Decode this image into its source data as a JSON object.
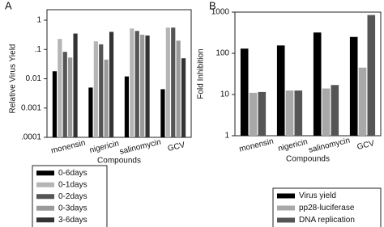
{
  "chart_data": [
    {
      "type": "bar",
      "title": "A",
      "y_label": "Relative Virus Yield",
      "x_label": "Compounds",
      "log_scale": true,
      "categories": [
        "monensin",
        "nigericin",
        "salinomycin",
        "GCV"
      ],
      "series": [
        {
          "name": "0-6days",
          "color": "#000000",
          "values": [
            0.018,
            0.005,
            0.012,
            0.0044
          ]
        },
        {
          "name": "0-1days",
          "color": "#b5b5b5",
          "values": [
            0.23,
            0.19,
            0.52,
            0.56
          ]
        },
        {
          "name": "0-2days",
          "color": "#555555",
          "values": [
            0.083,
            0.15,
            0.43,
            0.56
          ]
        },
        {
          "name": "0-3days",
          "color": "#9a9a9a",
          "values": [
            0.053,
            0.045,
            0.32,
            0.2
          ]
        },
        {
          "name": "3-6days",
          "color": "#333333",
          "values": [
            0.35,
            0.4,
            0.3,
            0.05
          ]
        }
      ],
      "ylim": [
        0.0001,
        1
      ],
      "yticks": [
        {
          "value": 0.0001,
          "label": ".0001"
        },
        {
          "value": 0.001,
          "label": "0.001"
        },
        {
          "value": 0.01,
          "label": "0.01"
        },
        {
          "value": 0.1,
          "label": ".1"
        },
        1
      ]
    },
    {
      "type": "bar",
      "title": "B",
      "y_label": "Fold Inhibition",
      "x_label": "Compounds",
      "log_scale": true,
      "categories": [
        "monensin",
        "nigericin",
        "salinomycin",
        "GCV"
      ],
      "series": [
        {
          "name": "Virus yield",
          "color": "#000000",
          "values": [
            130,
            155,
            320,
            250
          ]
        },
        {
          "name": "pp28-luciferase",
          "color": "#a8a8a8",
          "values": [
            11,
            12.5,
            14,
            45
          ]
        },
        {
          "name": "DNA replication",
          "color": "#555555",
          "values": [
            11.5,
            12.5,
            17,
            850
          ]
        }
      ],
      "ylim": [
        1,
        1000
      ],
      "yticks": [
        1,
        10,
        100,
        1000
      ]
    }
  ]
}
